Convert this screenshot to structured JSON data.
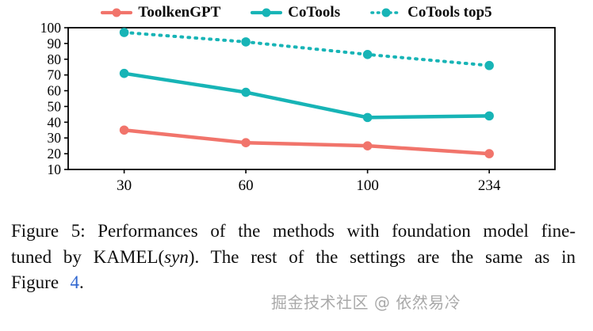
{
  "colors": {
    "toolkengpt": "#F1746B",
    "cotools": "#17B4B6",
    "axis": "#000000",
    "link": "#2F66D0",
    "watermark": "#9B9B9B"
  },
  "chart_data": {
    "type": "line",
    "x": [
      30,
      60,
      100,
      234
    ],
    "x_tick_labels": [
      "30",
      "60",
      "100",
      "234"
    ],
    "yticks": [
      10,
      20,
      30,
      40,
      50,
      60,
      70,
      80,
      90,
      100
    ],
    "ylim": [
      10,
      100
    ],
    "grid": false,
    "legend_position": "top-center",
    "series": [
      {
        "name": "ToolkenGPT",
        "color": "#F1746B",
        "line_style": "solid",
        "values": [
          35,
          27,
          25,
          20
        ]
      },
      {
        "name": "CoTools",
        "color": "#17B4B6",
        "line_style": "solid",
        "values": [
          71,
          59,
          43,
          44
        ]
      },
      {
        "name": "CoTools top5",
        "color": "#17B4B6",
        "line_style": "dotted",
        "values": [
          97,
          91,
          83,
          76
        ]
      }
    ]
  },
  "caption": {
    "text1": "Figure 5: Performances of the methods with foundation model fine-tuned by KAMEL(",
    "italic": "syn",
    "text2": "). The rest of the settings are the same as in Figure ",
    "link": "4",
    "suffix": "."
  },
  "watermark": {
    "text": "掘金技术社区 @ 依然易冷"
  }
}
